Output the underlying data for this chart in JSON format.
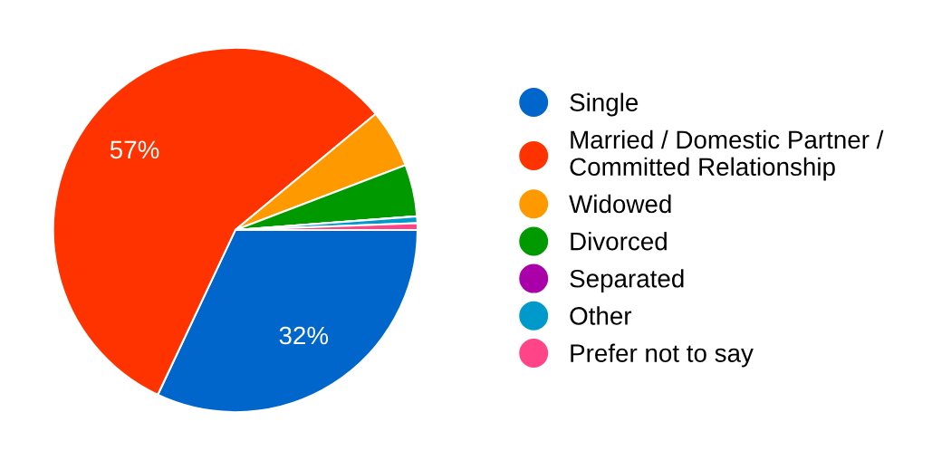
{
  "chart_data": {
    "type": "pie",
    "categories": [
      "Single",
      "Married / Domestic Partner /\nCommitted Relationship",
      "Widowed",
      "Divorced",
      "Separated",
      "Other",
      "Prefer not to say"
    ],
    "values": [
      32,
      57,
      5.2,
      4.6,
      0,
      0.6,
      0.6
    ],
    "colors": [
      "#0066cc",
      "#ff3300",
      "#ff9900",
      "#009900",
      "#aa00aa",
      "#0099cc",
      "#ff4488"
    ],
    "value_labels": [
      "32%",
      "57%",
      null,
      null,
      null,
      null,
      null
    ],
    "legend": "right"
  }
}
